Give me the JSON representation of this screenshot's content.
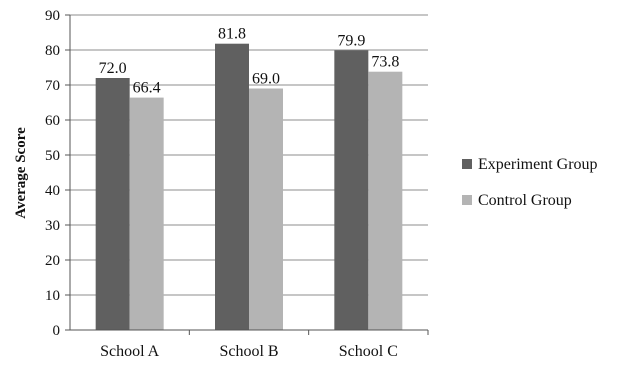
{
  "chart_data": {
    "type": "bar",
    "categories": [
      "School A",
      "School B",
      "School C"
    ],
    "series": [
      {
        "name": "Experiment Group",
        "values": [
          72.0,
          81.8,
          79.9
        ],
        "labels": [
          "72.0",
          "81.8",
          "79.9"
        ],
        "color": "#606060"
      },
      {
        "name": "Control Group",
        "values": [
          66.4,
          69.0,
          73.8
        ],
        "labels": [
          "66.4",
          "69.0",
          "73.8"
        ],
        "color": "#b4b4b4"
      }
    ],
    "title": "",
    "xlabel": "",
    "ylabel": "Average Score",
    "ylim": [
      0,
      90
    ],
    "yticks": [
      0,
      10,
      20,
      30,
      40,
      50,
      60,
      70,
      80,
      90
    ],
    "grid": true,
    "legend_position": "right"
  }
}
